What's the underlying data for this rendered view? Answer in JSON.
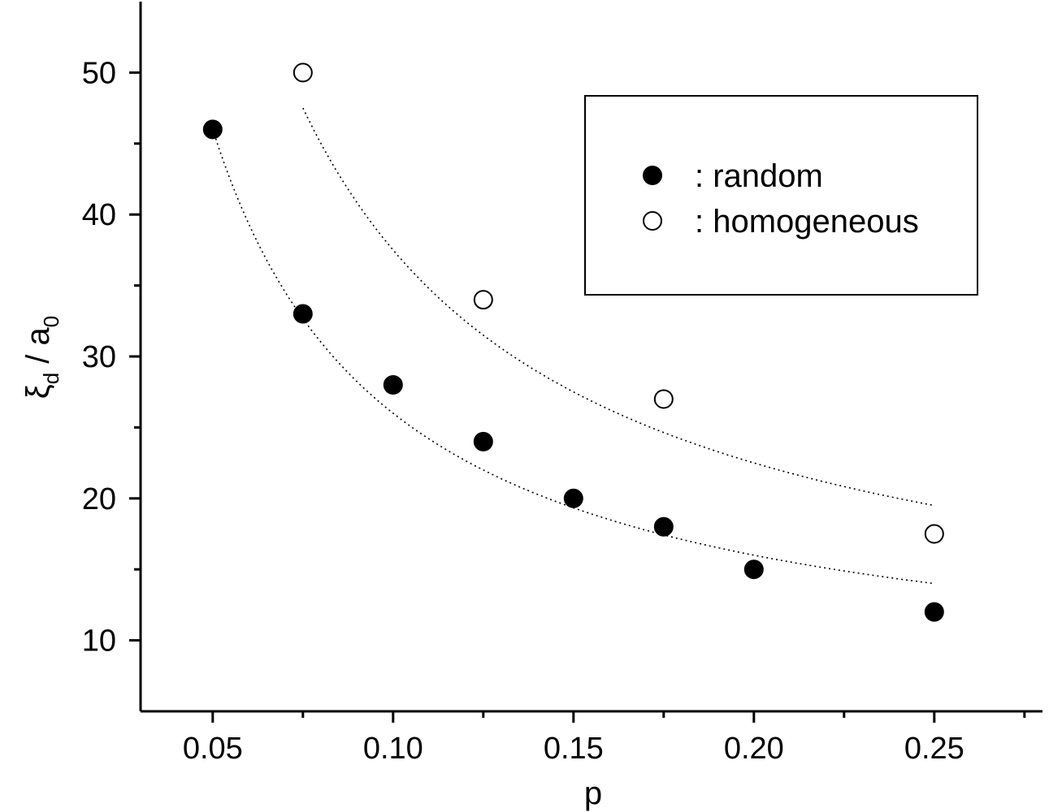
{
  "chart_data": {
    "type": "scatter",
    "xlabel": "p",
    "ylabel": {
      "symbol": "ξ",
      "symbol_subscript": "d",
      "divider": " / ",
      "denominator": "a",
      "denominator_subscript": "0"
    },
    "xlim": [
      0.03,
      0.28
    ],
    "ylim": [
      5,
      55
    ],
    "x_ticks": [
      0.05,
      0.1,
      0.15,
      0.2,
      0.25
    ],
    "x_tick_labels": [
      "0.05",
      "0.10",
      "0.15",
      "0.20",
      "0.25"
    ],
    "x_minor_ticks": [
      0.075,
      0.125,
      0.175,
      0.225,
      0.275
    ],
    "y_ticks": [
      10,
      20,
      30,
      40,
      50
    ],
    "y_tick_labels": [
      "10",
      "20",
      "30",
      "40",
      "50"
    ],
    "y_minor_ticks": [
      15,
      25,
      35,
      45
    ],
    "grid": false,
    "legend_position": "top-right",
    "series": [
      {
        "name": ": random",
        "marker": "filled-circle",
        "color": "#000000",
        "x": [
          0.05,
          0.075,
          0.1,
          0.125,
          0.15,
          0.175,
          0.2,
          0.25
        ],
        "y": [
          46,
          33,
          28,
          24,
          20,
          18,
          15,
          12
        ],
        "fit_curve": {
          "style": "dotted",
          "x_range": [
            0.05,
            0.25
          ],
          "form": "a/p+b",
          "a": 2.0,
          "b": 6.0
        }
      },
      {
        "name": ": homogeneous",
        "marker": "open-circle",
        "color": "#000000",
        "x": [
          0.075,
          0.125,
          0.175,
          0.25
        ],
        "y": [
          50,
          34,
          27,
          17.5
        ],
        "fit_curve": {
          "style": "dotted",
          "x_range": [
            0.075,
            0.25
          ],
          "form": "a/p+b",
          "a": 3.0,
          "b": 7.5
        }
      }
    ]
  }
}
